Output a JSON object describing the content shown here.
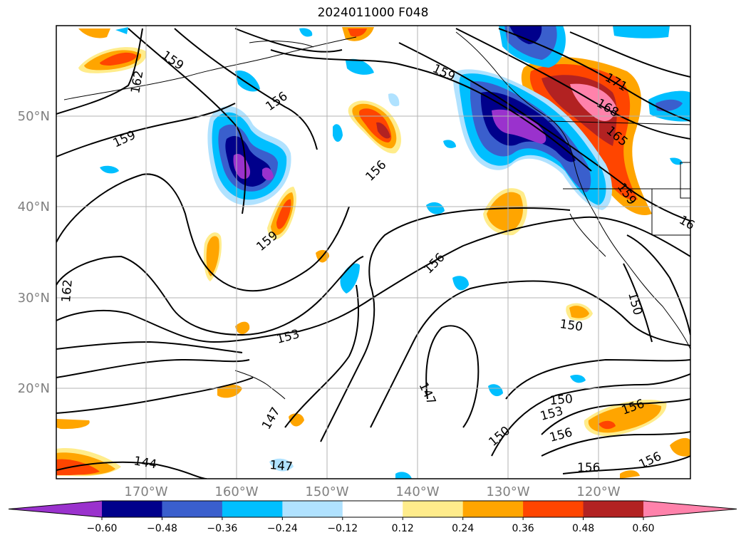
{
  "title": "2024011000 F048",
  "latitude_labels": [
    "50°N",
    "40°N",
    "30°N",
    "20°N"
  ],
  "longitude_labels": [
    "170°W",
    "160°W",
    "150°W",
    "140°W",
    "130°W",
    "120°W"
  ],
  "colorbar": {
    "tick_labels": [
      "−0.60",
      "−0.48",
      "−0.36",
      "−0.24",
      "−0.12",
      "0.12",
      "0.24",
      "0.36",
      "0.48",
      "0.60"
    ],
    "colors": [
      "#9a32cd",
      "#00008b",
      "#3a5fcd",
      "#00bfff",
      "#b0e2ff",
      "#ffffff",
      "#ffec8b",
      "#ffa500",
      "#ff4500",
      "#b22222",
      "#ff82ab"
    ]
  },
  "contour_labels": [
    "159",
    "162",
    "156",
    "171",
    "168",
    "165",
    "159",
    "159",
    "156",
    "156",
    "159",
    "159",
    "156",
    "162",
    "153",
    "150",
    "150",
    "147",
    "147",
    "150",
    "153",
    "156",
    "156",
    "150",
    "147",
    "144",
    "156",
    "156",
    "16"
  ]
}
